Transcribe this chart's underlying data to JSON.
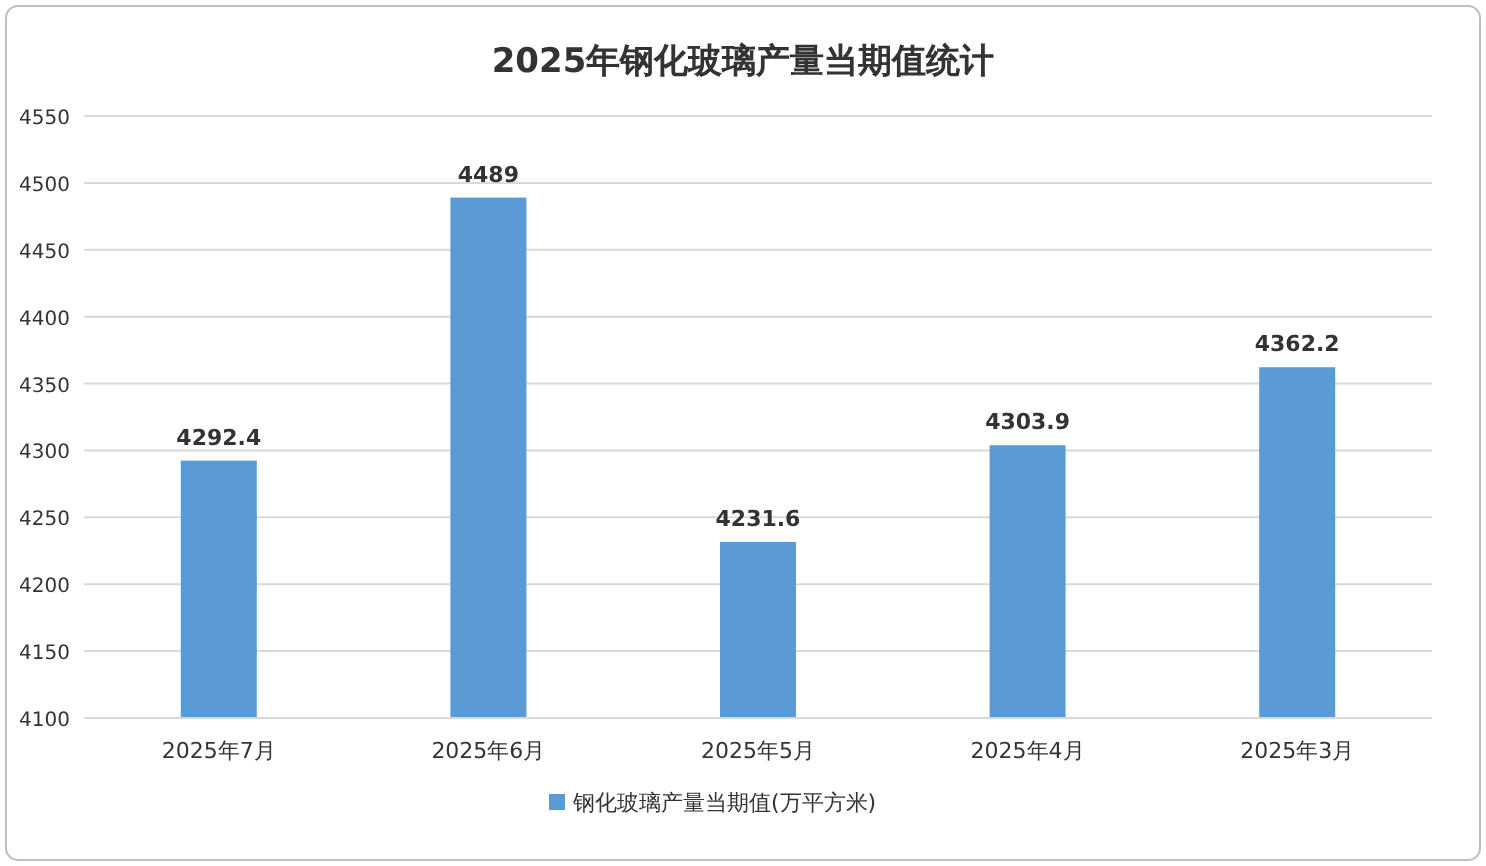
{
  "chart_data": {
    "type": "bar",
    "title": "2025年钢化玻璃产量当期值统计",
    "categories": [
      "2025年7月",
      "2025年6月",
      "2025年5月",
      "2025年4月",
      "2025年3月"
    ],
    "series": [
      {
        "name": "钢化玻璃产量当期值(万平方米)",
        "color": "#5b9bd5",
        "values": [
          4292.4,
          4489,
          4231.6,
          4303.9,
          4362.2
        ]
      }
    ],
    "ylim": [
      4100,
      4550
    ],
    "yticks": [
      4100,
      4150,
      4200,
      4250,
      4300,
      4350,
      4400,
      4450,
      4500,
      4550
    ],
    "grid": "y",
    "legend": "bottom",
    "data_labels": true
  }
}
